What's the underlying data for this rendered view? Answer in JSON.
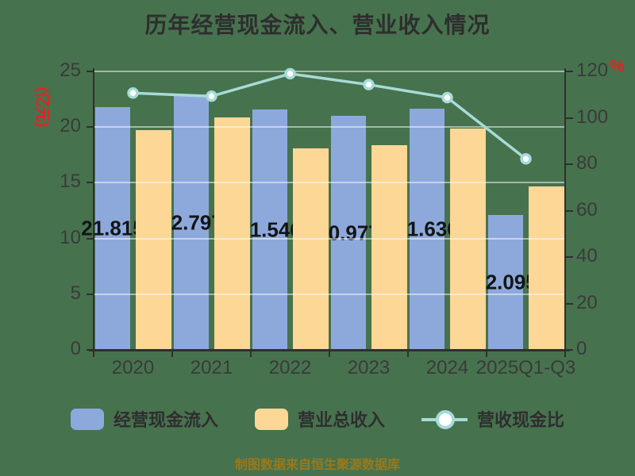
{
  "title": "历年经营现金流入、营业收入情况",
  "footer": "制图数据来自恒生聚源数据库",
  "colors": {
    "background": "#47724E",
    "cash_bar": "#8DA9DC",
    "revenue_bar": "#FCD795",
    "ratio_line": "#A6DBD7",
    "marker_fill": "#FFFFFF",
    "unit_label_red": "#E62222",
    "footer_text": "#9A791B"
  },
  "chart_data": {
    "type": "bar",
    "title": "历年经营现金流入、营业收入情况",
    "categories": [
      "2020",
      "2021",
      "2022",
      "2023",
      "2024",
      "2025Q1-Q3"
    ],
    "series": [
      {
        "name": "经营现金流入",
        "type": "bar",
        "color": "#8DA9DC",
        "axis": "left",
        "values": [
          21.815,
          22.797,
          21.546,
          20.977,
          21.636,
          12.095
        ],
        "labels": [
          "21.815",
          "22.797",
          "21.546",
          "20.977",
          "21.636",
          "12.095"
        ]
      },
      {
        "name": "营业总收入",
        "type": "bar",
        "color": "#FCD795",
        "axis": "left",
        "values": [
          19.7,
          20.85,
          18.1,
          18.35,
          19.9,
          14.7
        ]
      },
      {
        "name": "营收现金比",
        "type": "line",
        "color": "#A6DBD7",
        "axis": "right",
        "values": [
          110.7,
          109.3,
          119.0,
          114.3,
          108.7,
          82.3
        ]
      }
    ],
    "left_axis": {
      "label": "(亿元)",
      "min": 0,
      "max": 25,
      "ticks": [
        0,
        5,
        10,
        15,
        20,
        25
      ]
    },
    "right_axis": {
      "label": "%",
      "min": 0,
      "max": 120,
      "ticks": [
        0,
        20,
        40,
        60,
        80,
        100,
        120
      ]
    },
    "legend_position": "bottom",
    "grid": true
  }
}
